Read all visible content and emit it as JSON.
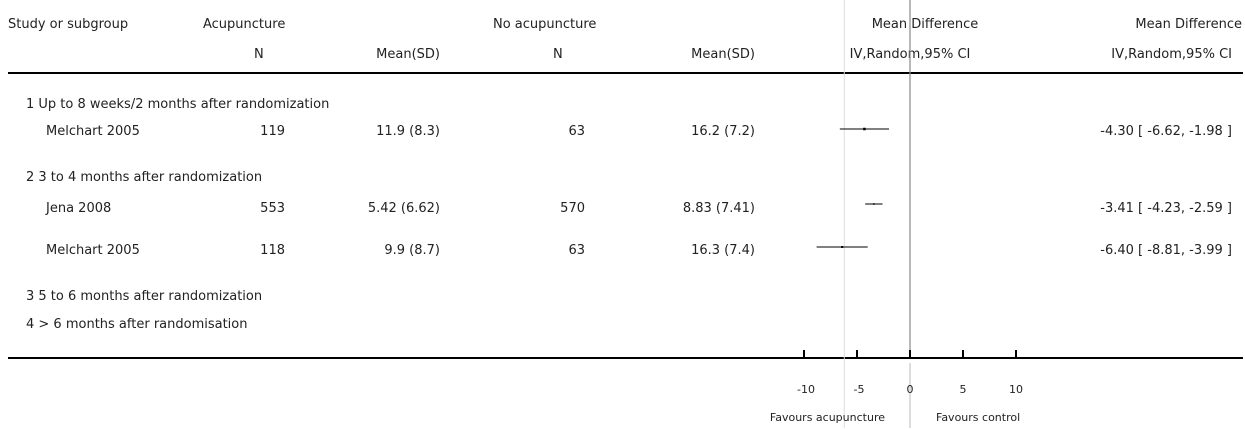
{
  "header": {
    "col_study": "Study or subgroup",
    "group1": "Acupuncture",
    "group2": "No acupuncture",
    "n1": "N",
    "mean1": "Mean(SD)",
    "n2": "N",
    "mean2": "Mean(SD)",
    "plot_title": "Mean Difference",
    "plot_sub": "IV,Random,95% CI",
    "result_title": "Mean Difference",
    "result_sub": "IV,Random,95% CI"
  },
  "subgroups": [
    {
      "label": "1 Up to 8 weeks/2 months after randomization",
      "studies": [
        {
          "name": "Melchart 2005",
          "n1": "119",
          "mean1": "11.9 (8.3)",
          "n2": "63",
          "mean2": "16.2 (7.2)",
          "result": "-4.30 [ -6.62, -1.98 ]"
        }
      ]
    },
    {
      "label": "2 3 to 4 months after randomization",
      "studies": [
        {
          "name": "Jena 2008",
          "n1": "553",
          "mean1": "5.42 (6.62)",
          "n2": "570",
          "mean2": "8.83 (7.41)",
          "result": "-3.41 [ -4.23, -2.59 ]"
        },
        {
          "name": "Melchart 2005",
          "n1": "118",
          "mean1": "9.9 (8.7)",
          "n2": "63",
          "mean2": "16.3 (7.4)",
          "result": "-6.40 [ -8.81, -3.99 ]"
        }
      ]
    },
    {
      "label": "3 5 to 6 months after randomization",
      "studies": []
    },
    {
      "label": "4 > 6 months after randomisation",
      "studies": []
    }
  ],
  "axis": {
    "ticks": [
      "-10",
      "-5",
      "0",
      "5",
      "10"
    ],
    "left_label": "Favours acupuncture",
    "right_label": "Favours control"
  },
  "chart_data": {
    "type": "forest",
    "x_range": [
      -10,
      10
    ],
    "ticks": [
      -10,
      -5,
      0,
      5,
      10
    ],
    "studies": [
      {
        "name": "Melchart 2005",
        "subgroup": "1 Up to 8 weeks/2 months after randomization",
        "md": -4.3,
        "ci": [
          -6.62,
          -1.98
        ]
      },
      {
        "name": "Jena 2008",
        "subgroup": "2 3 to 4 months after randomization",
        "md": -3.41,
        "ci": [
          -4.23,
          -2.59
        ]
      },
      {
        "name": "Melchart 2005",
        "subgroup": "2 3 to 4 months after randomization",
        "md": -6.4,
        "ci": [
          -8.81,
          -3.99
        ]
      }
    ]
  }
}
